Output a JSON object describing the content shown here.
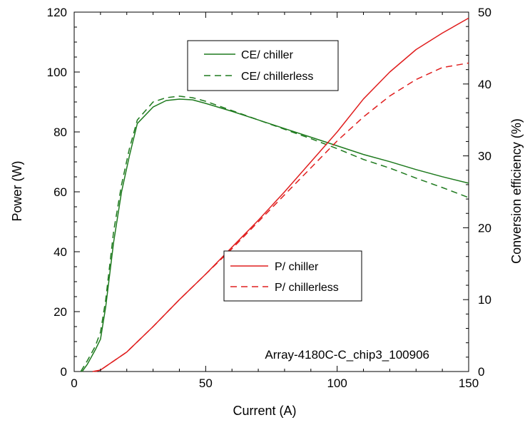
{
  "chart_data": {
    "type": "line",
    "xlabel": "Current (A)",
    "ylabel_left": "Power (W)",
    "ylabel_right": "Conversion efficiency (%)",
    "xlim": [
      0,
      150
    ],
    "ylim_left": [
      0,
      120
    ],
    "ylim_right": [
      0,
      50
    ],
    "xticks": [
      0,
      50,
      100,
      150
    ],
    "yticks_left": [
      0,
      20,
      40,
      60,
      80,
      100,
      120
    ],
    "yticks_right": [
      0,
      10,
      20,
      30,
      40,
      50
    ],
    "grid": false,
    "annotation": "Array-4180C-C_chip3_100906",
    "legends": [
      {
        "position": "upper-middle",
        "entries": [
          "CE/ chiller",
          "CE/ chillerless"
        ]
      },
      {
        "position": "center-right",
        "entries": [
          "P/ chiller",
          "P/ chillerless"
        ]
      }
    ],
    "series": [
      {
        "name": "CE/ chiller",
        "axis": "right",
        "color": "#1e7a1e",
        "dash": "solid",
        "x": [
          3,
          5,
          8,
          10,
          12,
          15,
          18,
          21,
          24,
          30,
          35,
          40,
          45,
          50,
          60,
          70,
          80,
          90,
          100,
          110,
          120,
          130,
          140,
          150
        ],
        "y": [
          0,
          1,
          3,
          4.5,
          9,
          18,
          25,
          30,
          34.5,
          36.8,
          37.7,
          37.9,
          37.8,
          37.3,
          36.2,
          35,
          33.8,
          32.6,
          31.4,
          30.2,
          29.2,
          28.1,
          27.1,
          26.2
        ]
      },
      {
        "name": "CE/ chillerless",
        "axis": "right",
        "color": "#1e7a1e",
        "dash": "dashed",
        "x": [
          2.5,
          5,
          8,
          10,
          12,
          15,
          18,
          21,
          24,
          30,
          35,
          40,
          45,
          50,
          60,
          70,
          80,
          90,
          100,
          110,
          120,
          130,
          140,
          150
        ],
        "y": [
          0,
          1.5,
          3.5,
          5.5,
          10,
          19.5,
          26,
          31,
          35,
          37.5,
          38.1,
          38.3,
          38.1,
          37.6,
          36.3,
          35,
          33.7,
          32.4,
          31,
          29.5,
          28.3,
          26.9,
          25.6,
          24.2
        ]
      },
      {
        "name": "P/ chiller",
        "axis": "left",
        "color": "#e01e1e",
        "dash": "solid",
        "x": [
          8,
          10,
          20,
          30,
          40,
          50,
          60,
          70,
          80,
          90,
          100,
          110,
          120,
          130,
          140,
          150
        ],
        "y": [
          0,
          0.5,
          6.5,
          15,
          24,
          32.5,
          41.5,
          50.5,
          60,
          70,
          80,
          91,
          100,
          107.5,
          113,
          118
        ]
      },
      {
        "name": "P/ chillerless",
        "axis": "left",
        "color": "#e01e1e",
        "dash": "dashed",
        "x": [
          7,
          10,
          20,
          30,
          40,
          50,
          60,
          70,
          80,
          90,
          100,
          110,
          120,
          130,
          140,
          150
        ],
        "y": [
          0,
          0.5,
          6.5,
          15,
          24,
          32.5,
          41,
          50,
          59,
          68,
          77,
          85,
          92,
          97.5,
          101.5,
          103
        ]
      }
    ]
  }
}
